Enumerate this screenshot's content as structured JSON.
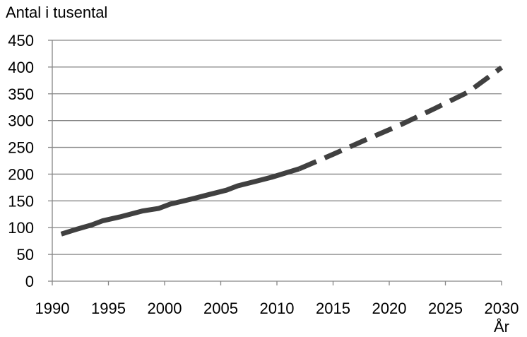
{
  "chart_data": {
    "type": "line",
    "title": "",
    "ylabel": "Antal i tusental",
    "xlabel": "År",
    "xlim": [
      1990,
      2030
    ],
    "ylim": [
      0,
      450
    ],
    "x_ticks": [
      "1990",
      "1995",
      "2000",
      "2005",
      "2010",
      "2015",
      "2020",
      "2025",
      "2030"
    ],
    "y_ticks": [
      "0",
      "50",
      "100",
      "150",
      "200",
      "250",
      "300",
      "350",
      "400",
      "450"
    ],
    "grid": "horizontal",
    "legend": "none",
    "series": [
      {
        "style": "solid",
        "color": "#404040",
        "points": [
          [
            1990.8,
            88
          ],
          [
            1992,
            96
          ],
          [
            1993.5,
            105
          ],
          [
            1994.5,
            113
          ],
          [
            1996,
            120
          ],
          [
            1998,
            131
          ],
          [
            1999.5,
            136
          ],
          [
            2000.5,
            144
          ],
          [
            2002.5,
            154
          ],
          [
            2004,
            162
          ],
          [
            2005.5,
            170
          ],
          [
            2006.5,
            178
          ],
          [
            2008,
            186
          ],
          [
            2009.5,
            194
          ],
          [
            2012,
            210
          ]
        ]
      },
      {
        "style": "dashed",
        "color": "#404040",
        "points": [
          [
            2012,
            210
          ],
          [
            2015,
            237
          ],
          [
            2018,
            265
          ],
          [
            2021,
            292
          ],
          [
            2024,
            322
          ],
          [
            2027,
            353
          ],
          [
            2030,
            399
          ]
        ]
      }
    ]
  }
}
